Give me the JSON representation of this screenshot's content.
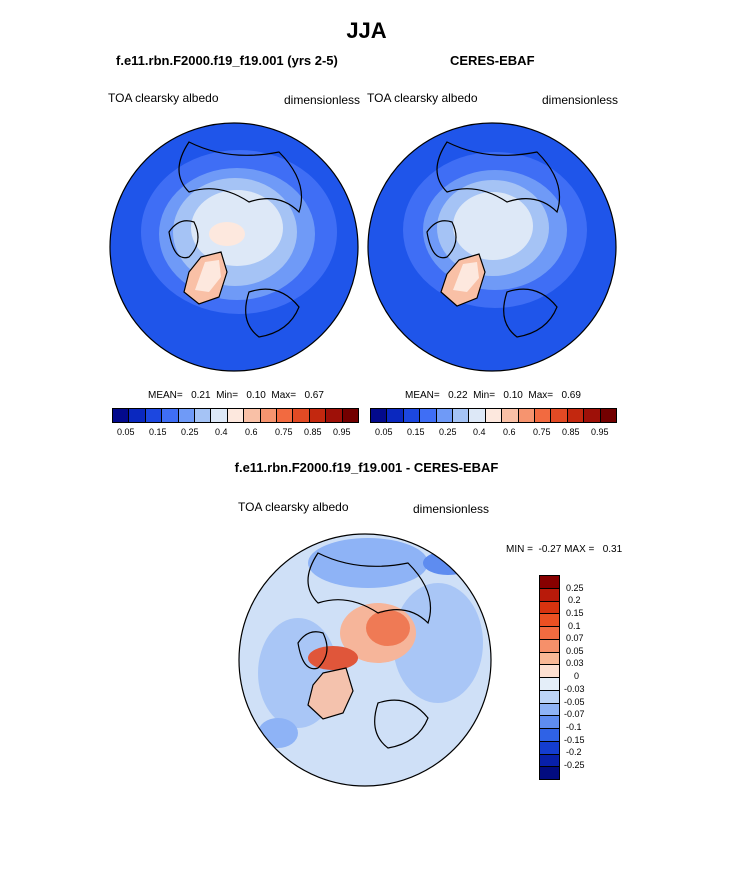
{
  "season": "JJA",
  "panels": [
    {
      "title": "f.e11.rbn.F2000.f19_f19.001 (yrs 2-5)",
      "variable": "TOA clearsky albedo",
      "units": "dimensionless",
      "stats": "MEAN=   0.21  Min=   0.10  Max=   0.67"
    },
    {
      "title": "CERES-EBAF",
      "variable": "TOA clearsky albedo",
      "units": "dimensionless",
      "stats": "MEAN=   0.22  Min=   0.10  Max=   0.69"
    },
    {
      "title": "f.e11.rbn.F2000.f19_f19.001 - CERES-EBAF",
      "variable": "TOA clearsky albedo",
      "units": "dimensionless",
      "stats": "MIN =  -0.27 MAX =   0.31"
    }
  ],
  "albedo_colorbar": {
    "labels": [
      "0.05",
      "0.15",
      "0.25",
      "0.4",
      "0.6",
      "0.75",
      "0.85",
      "0.95"
    ],
    "colors": [
      "#030a8c",
      "#0a28bf",
      "#1c47e0",
      "#3f6ef5",
      "#6f9af7",
      "#a5c3f5",
      "#dde8f7",
      "#fde8de",
      "#f9c0a6",
      "#f6946f",
      "#f26a40",
      "#e24a24",
      "#c3280f",
      "#9e1008",
      "#730000"
    ]
  },
  "diff_colorbar": {
    "labels": [
      "0.25",
      "0.2",
      "0.15",
      "0.1",
      "0.07",
      "0.05",
      "0.03",
      "0",
      "-0.03",
      "-0.05",
      "-0.07",
      "-0.1",
      "-0.15",
      "-0.2",
      "-0.25"
    ],
    "colors": [
      "#870000",
      "#b81a0a",
      "#d8330f",
      "#ec5022",
      "#f26b40",
      "#f6906a",
      "#f9b896",
      "#fde0d2",
      "#e4eef9",
      "#bcd4f7",
      "#8eb3f6",
      "#5e8cf0",
      "#2f62e6",
      "#143dd0",
      "#0820aa",
      "#020c80"
    ]
  },
  "legend": {
    "map_colors": {
      "ocean_low": "#1f55ea",
      "ice": "#c6d9f7",
      "greenland": "#f7cdb8",
      "diff_background": "#cfe0f7",
      "diff_positive": "#ef7a55"
    }
  }
}
